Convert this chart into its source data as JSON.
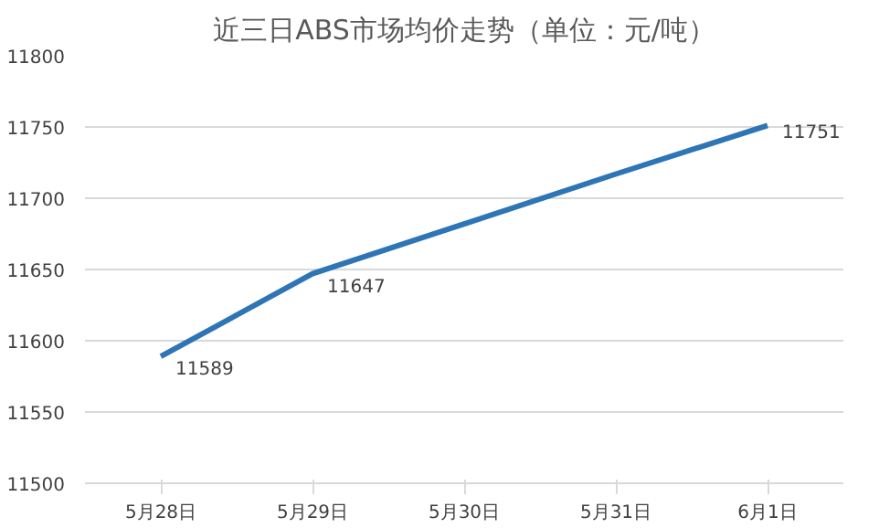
{
  "chart_data": {
    "type": "line",
    "title": "近三日ABS市场均价走势（单位：元/吨）",
    "categories": [
      "5月28日",
      "5月29日",
      "5月30日",
      "5月31日",
      "6月1日"
    ],
    "series": [
      {
        "color": "#2e75b6",
        "values": [
          11589,
          11647,
          11682,
          11717,
          11751
        ],
        "value_labels": [
          "11589",
          "11647",
          null,
          null,
          "11751"
        ]
      }
    ],
    "ylim": [
      11500,
      11800
    ],
    "yticks": [
      11500,
      11550,
      11600,
      11650,
      11700,
      11750,
      11800
    ],
    "grid": "y",
    "marker": "none",
    "line_style": "solid"
  }
}
